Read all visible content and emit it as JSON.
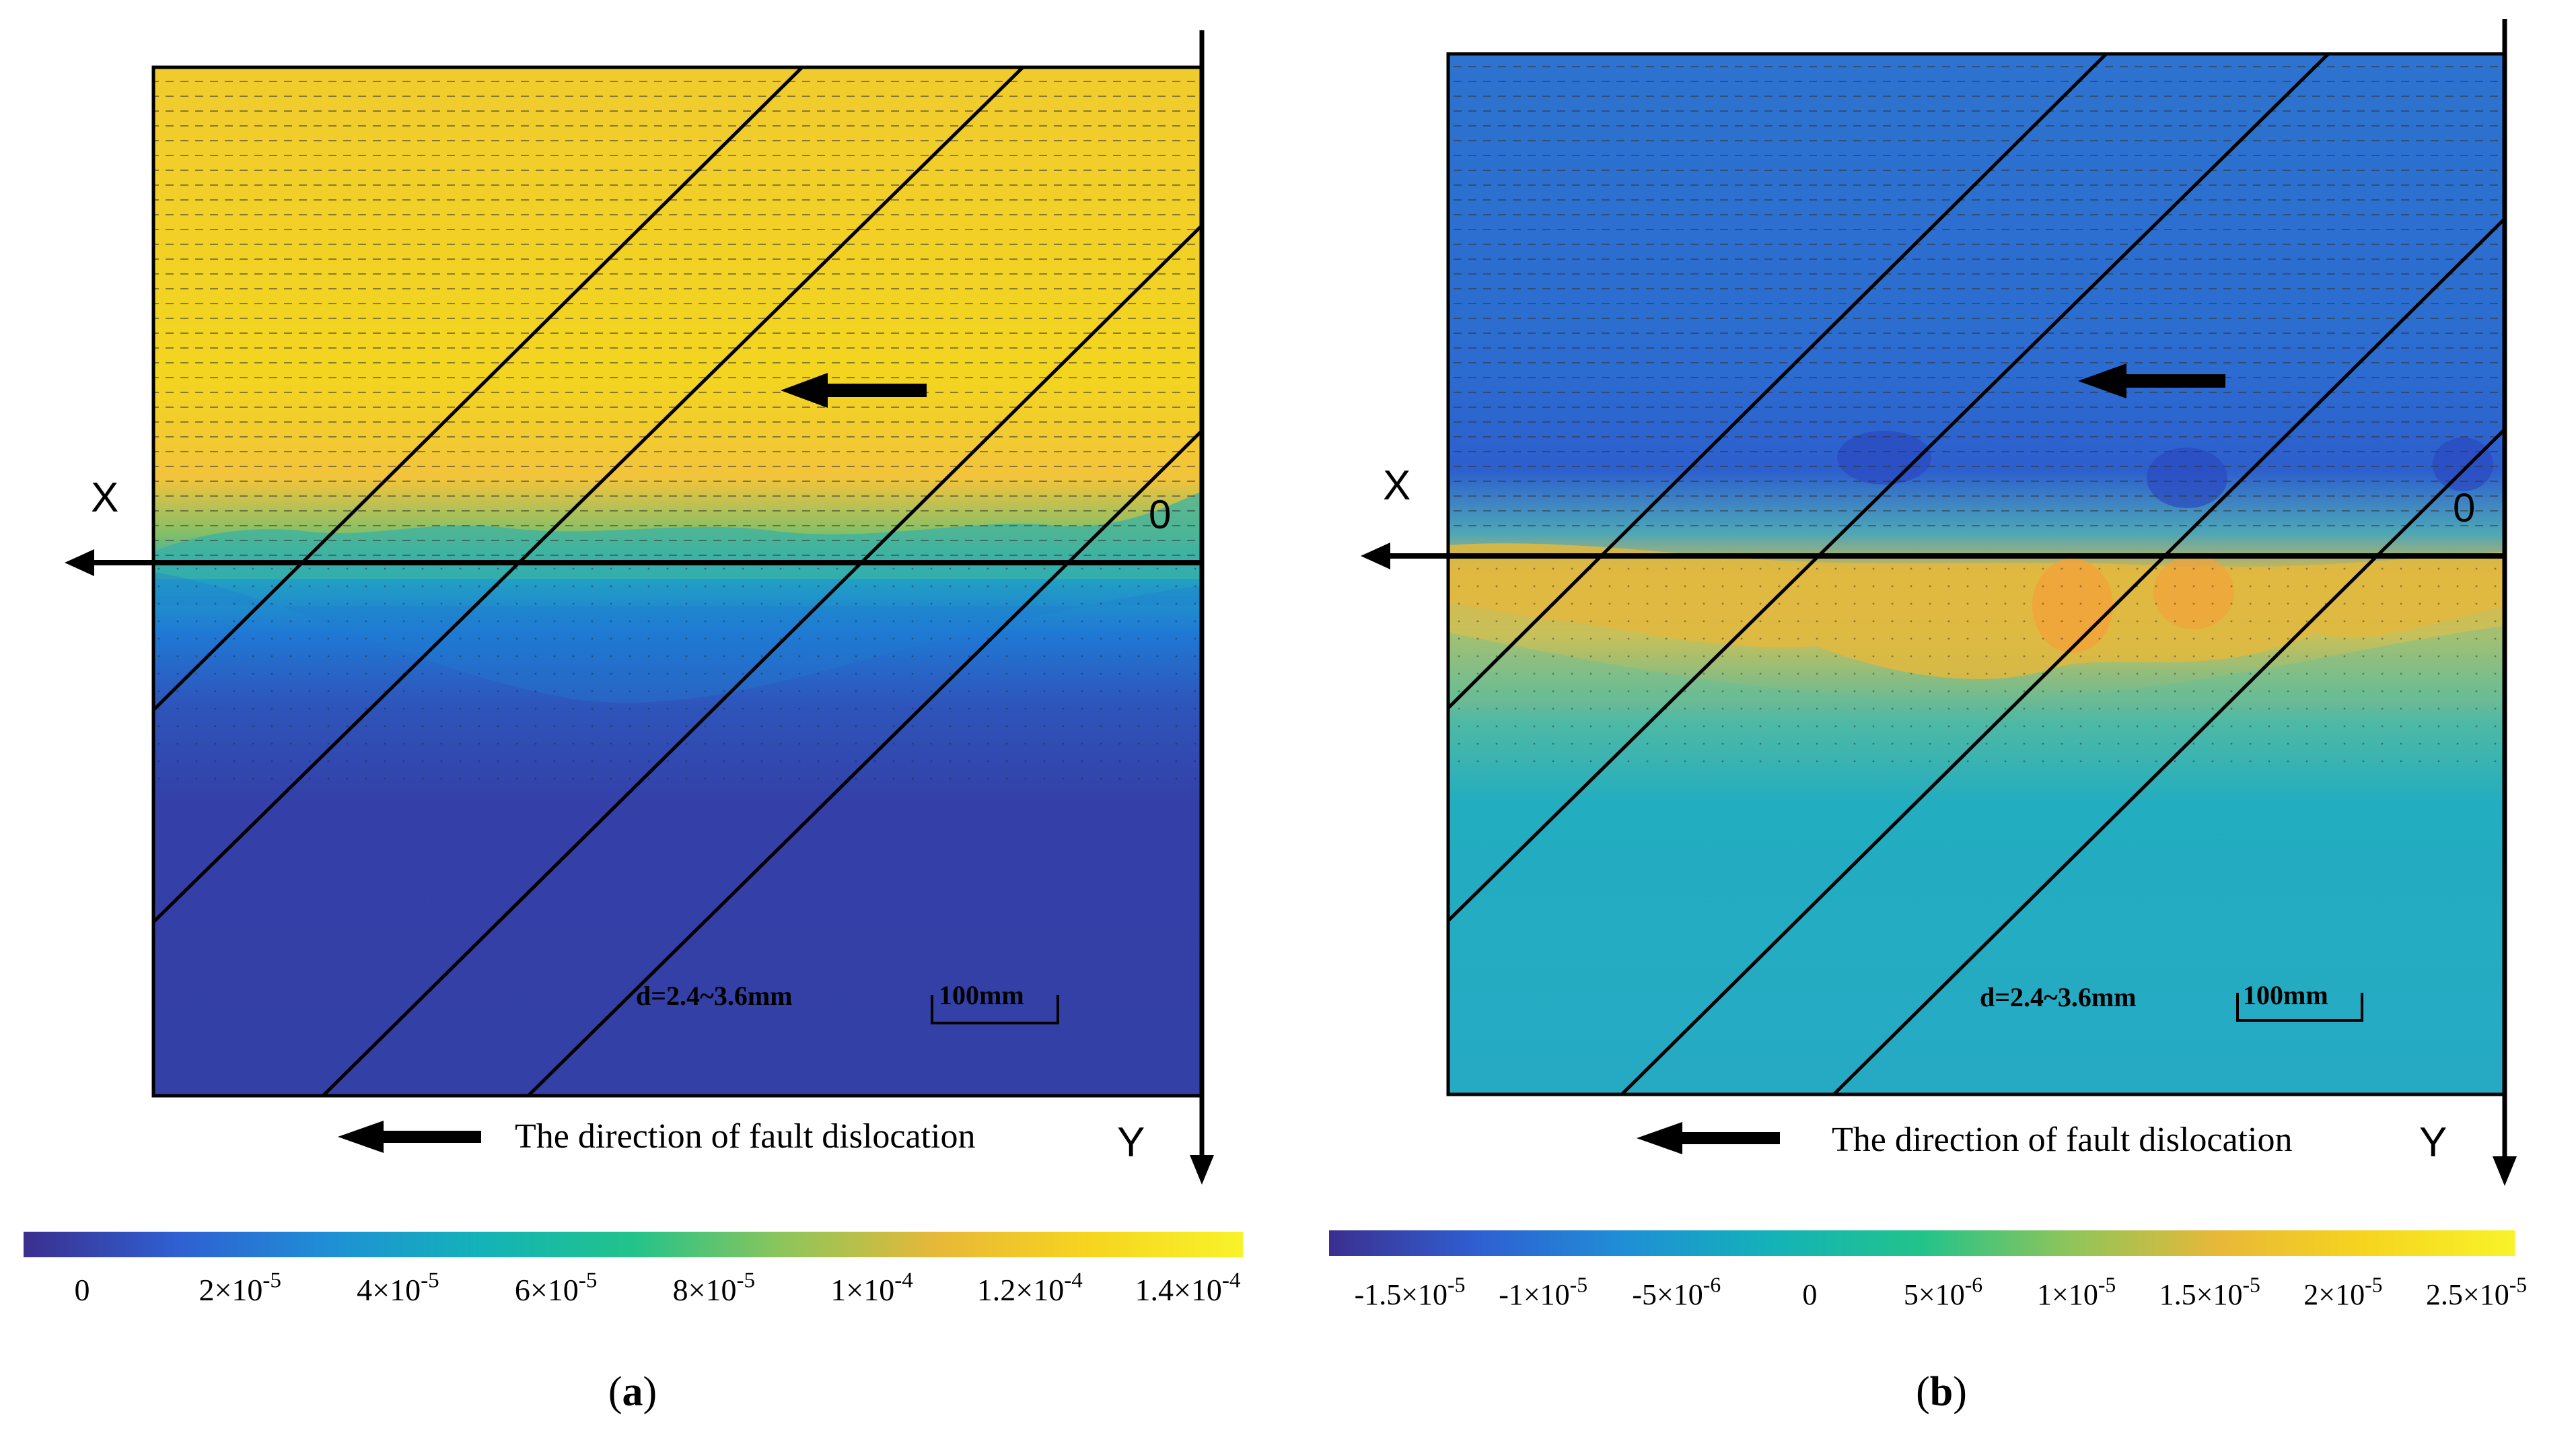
{
  "panels": [
    {
      "id": "a",
      "label": "a",
      "label_open": "(",
      "label_close": ")",
      "axis_x": "X",
      "axis_y": "Y",
      "origin": "0",
      "displacement_range": "d=2.4~3.6mm",
      "scale_bar": "100mm",
      "fault_caption": "The direction of fault dislocation",
      "colorbar_ticks": [
        {
          "base": "0",
          "exp": ""
        },
        {
          "base": "2×10",
          "exp": "-5"
        },
        {
          "base": "4×10",
          "exp": "-5"
        },
        {
          "base": "6×10",
          "exp": "-5"
        },
        {
          "base": "8×10",
          "exp": "-5"
        },
        {
          "base": "1×10",
          "exp": "-4"
        },
        {
          "base": "1.2×10",
          "exp": "-4"
        },
        {
          "base": "1.4×10",
          "exp": "-4"
        }
      ]
    },
    {
      "id": "b",
      "label": "b",
      "label_open": "(",
      "label_close": ")",
      "axis_x": "X",
      "axis_y": "Y",
      "origin": "0",
      "displacement_range": "d=2.4~3.6mm",
      "scale_bar": "100mm",
      "fault_caption": "The direction of fault dislocation",
      "colorbar_ticks": [
        {
          "base": "-1.5×10",
          "exp": "-5"
        },
        {
          "base": "-1×10",
          "exp": "-5"
        },
        {
          "base": "-5×10",
          "exp": "-6"
        },
        {
          "base": "0",
          "exp": ""
        },
        {
          "base": "5×10",
          "exp": "-6"
        },
        {
          "base": "1×10",
          "exp": "-5"
        },
        {
          "base": "1.5×10",
          "exp": "-5"
        },
        {
          "base": "2×10",
          "exp": "-5"
        },
        {
          "base": "2.5×10",
          "exp": "-5"
        }
      ]
    }
  ],
  "colors": {
    "colormap": [
      "#3b2f8f",
      "#2f5fd2",
      "#1f8fd6",
      "#13b3b8",
      "#22c38a",
      "#8fc55a",
      "#e8b838",
      "#f6d51e",
      "#f8f32a"
    ],
    "a_upper": "#f2d12a",
    "a_lower": "#3341a8",
    "b_upper": "#2a6fd0",
    "b_lower": "#23aac4",
    "b_interface": "#e8c040",
    "ink": "#000000"
  }
}
